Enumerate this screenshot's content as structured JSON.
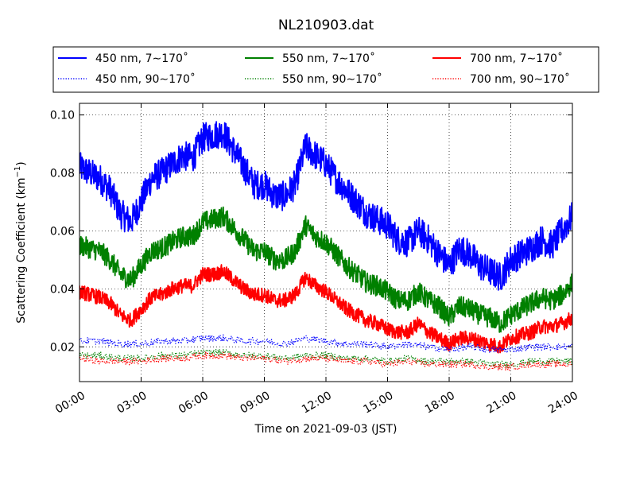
{
  "chart_data": {
    "type": "line",
    "title": "NL210903.dat",
    "xlabel": "Time on 2021-09-03 (JST)",
    "ylabel": "Scattering Coefficient (km",
    "ylabel_sup": "−1",
    "ylabel_end": ")",
    "xlim": [
      0,
      24
    ],
    "ylim": [
      0.008,
      0.104
    ],
    "grid": true,
    "legend_position": "top",
    "x_ticks": [
      0,
      3,
      6,
      9,
      12,
      15,
      18,
      21,
      24
    ],
    "x_tick_labels": [
      "00:00",
      "03:00",
      "06:00",
      "09:00",
      "12:00",
      "15:00",
      "18:00",
      "21:00",
      "24:00"
    ],
    "y_ticks": [
      0.02,
      0.04,
      0.06,
      0.08,
      0.1
    ],
    "y_tick_labels": [
      "0.02",
      "0.04",
      "0.06",
      "0.08",
      "0.10"
    ],
    "series": [
      {
        "name": "450 nm, 7∼170˚",
        "color": "#0000ff",
        "style": "solid",
        "x": [
          0,
          0.5,
          1,
          1.5,
          2,
          2.5,
          3,
          3.5,
          4,
          4.5,
          5,
          5.5,
          6,
          6.5,
          7,
          7.5,
          8,
          8.5,
          9,
          9.5,
          10,
          10.5,
          11,
          11.5,
          12,
          12.5,
          13,
          13.5,
          14,
          14.5,
          15,
          15.5,
          16,
          16.5,
          17,
          17.5,
          18,
          18.5,
          19,
          19.5,
          20,
          20.5,
          21,
          21.5,
          22,
          22.5,
          23,
          23.5,
          24
        ],
        "y": [
          0.082,
          0.08,
          0.078,
          0.074,
          0.066,
          0.063,
          0.07,
          0.078,
          0.08,
          0.083,
          0.086,
          0.085,
          0.092,
          0.093,
          0.094,
          0.088,
          0.082,
          0.076,
          0.076,
          0.072,
          0.072,
          0.076,
          0.089,
          0.086,
          0.083,
          0.078,
          0.074,
          0.07,
          0.066,
          0.064,
          0.062,
          0.057,
          0.056,
          0.06,
          0.057,
          0.052,
          0.048,
          0.054,
          0.052,
          0.048,
          0.046,
          0.044,
          0.05,
          0.052,
          0.054,
          0.057,
          0.055,
          0.06,
          0.065
        ]
      },
      {
        "name": "550 nm, 7∼170˚",
        "color": "#008000",
        "style": "solid",
        "x": [
          0,
          0.5,
          1,
          1.5,
          2,
          2.5,
          3,
          3.5,
          4,
          4.5,
          5,
          5.5,
          6,
          6.5,
          7,
          7.5,
          8,
          8.5,
          9,
          9.5,
          10,
          10.5,
          11,
          11.5,
          12,
          12.5,
          13,
          13.5,
          14,
          14.5,
          15,
          15.5,
          16,
          16.5,
          17,
          17.5,
          18,
          18.5,
          19,
          19.5,
          20,
          20.5,
          21,
          21.5,
          22,
          22.5,
          23,
          23.5,
          24
        ],
        "y": [
          0.055,
          0.054,
          0.053,
          0.05,
          0.045,
          0.043,
          0.048,
          0.053,
          0.054,
          0.056,
          0.058,
          0.058,
          0.063,
          0.064,
          0.065,
          0.061,
          0.057,
          0.053,
          0.053,
          0.05,
          0.05,
          0.053,
          0.062,
          0.058,
          0.056,
          0.052,
          0.048,
          0.045,
          0.042,
          0.041,
          0.039,
          0.036,
          0.036,
          0.039,
          0.036,
          0.034,
          0.03,
          0.034,
          0.033,
          0.031,
          0.03,
          0.028,
          0.031,
          0.033,
          0.035,
          0.037,
          0.036,
          0.038,
          0.042
        ]
      },
      {
        "name": "700 nm, 7∼170˚",
        "color": "#ff0000",
        "style": "solid",
        "x": [
          0,
          0.5,
          1,
          1.5,
          2,
          2.5,
          3,
          3.5,
          4,
          4.5,
          5,
          5.5,
          6,
          6.5,
          7,
          7.5,
          8,
          8.5,
          9,
          9.5,
          10,
          10.5,
          11,
          11.5,
          12,
          12.5,
          13,
          13.5,
          14,
          14.5,
          15,
          15.5,
          16,
          16.5,
          17,
          17.5,
          18,
          18.5,
          19,
          19.5,
          20,
          20.5,
          21,
          21.5,
          22,
          22.5,
          23,
          23.5,
          24
        ],
        "y": [
          0.039,
          0.038,
          0.037,
          0.035,
          0.031,
          0.029,
          0.033,
          0.037,
          0.038,
          0.04,
          0.041,
          0.041,
          0.045,
          0.045,
          0.046,
          0.043,
          0.04,
          0.038,
          0.038,
          0.036,
          0.036,
          0.038,
          0.044,
          0.041,
          0.039,
          0.036,
          0.033,
          0.031,
          0.029,
          0.028,
          0.026,
          0.025,
          0.025,
          0.028,
          0.025,
          0.023,
          0.021,
          0.023,
          0.023,
          0.022,
          0.021,
          0.02,
          0.023,
          0.024,
          0.025,
          0.027,
          0.027,
          0.028,
          0.03
        ]
      },
      {
        "name": "450 nm, 90∼170˚",
        "color": "#0000ff",
        "style": "dotted",
        "x": [
          0,
          1,
          2,
          3,
          4,
          5,
          6,
          7,
          8,
          9,
          10,
          11,
          12,
          13,
          14,
          15,
          16,
          17,
          18,
          19,
          20,
          21,
          22,
          23,
          24
        ],
        "y": [
          0.022,
          0.022,
          0.021,
          0.021,
          0.022,
          0.022,
          0.023,
          0.023,
          0.022,
          0.022,
          0.021,
          0.023,
          0.022,
          0.021,
          0.021,
          0.02,
          0.021,
          0.02,
          0.019,
          0.02,
          0.019,
          0.019,
          0.02,
          0.02,
          0.02
        ]
      },
      {
        "name": "550 nm, 90∼170˚",
        "color": "#008000",
        "style": "dotted",
        "x": [
          0,
          1,
          2,
          3,
          4,
          5,
          6,
          7,
          8,
          9,
          10,
          11,
          12,
          13,
          14,
          15,
          16,
          17,
          18,
          19,
          20,
          21,
          22,
          23,
          24
        ],
        "y": [
          0.017,
          0.017,
          0.016,
          0.016,
          0.017,
          0.017,
          0.018,
          0.018,
          0.017,
          0.017,
          0.016,
          0.017,
          0.017,
          0.016,
          0.016,
          0.015,
          0.016,
          0.015,
          0.015,
          0.015,
          0.014,
          0.014,
          0.015,
          0.015,
          0.015
        ]
      },
      {
        "name": "700 nm, 90∼170˚",
        "color": "#ff0000",
        "style": "dotted",
        "x": [
          0,
          1,
          2,
          3,
          4,
          5,
          6,
          7,
          8,
          9,
          10,
          11,
          12,
          13,
          14,
          15,
          16,
          17,
          18,
          19,
          20,
          21,
          22,
          23,
          24
        ],
        "y": [
          0.016,
          0.015,
          0.015,
          0.015,
          0.016,
          0.016,
          0.017,
          0.017,
          0.016,
          0.016,
          0.015,
          0.016,
          0.016,
          0.015,
          0.015,
          0.014,
          0.015,
          0.014,
          0.014,
          0.014,
          0.013,
          0.013,
          0.014,
          0.014,
          0.014
        ]
      }
    ]
  }
}
